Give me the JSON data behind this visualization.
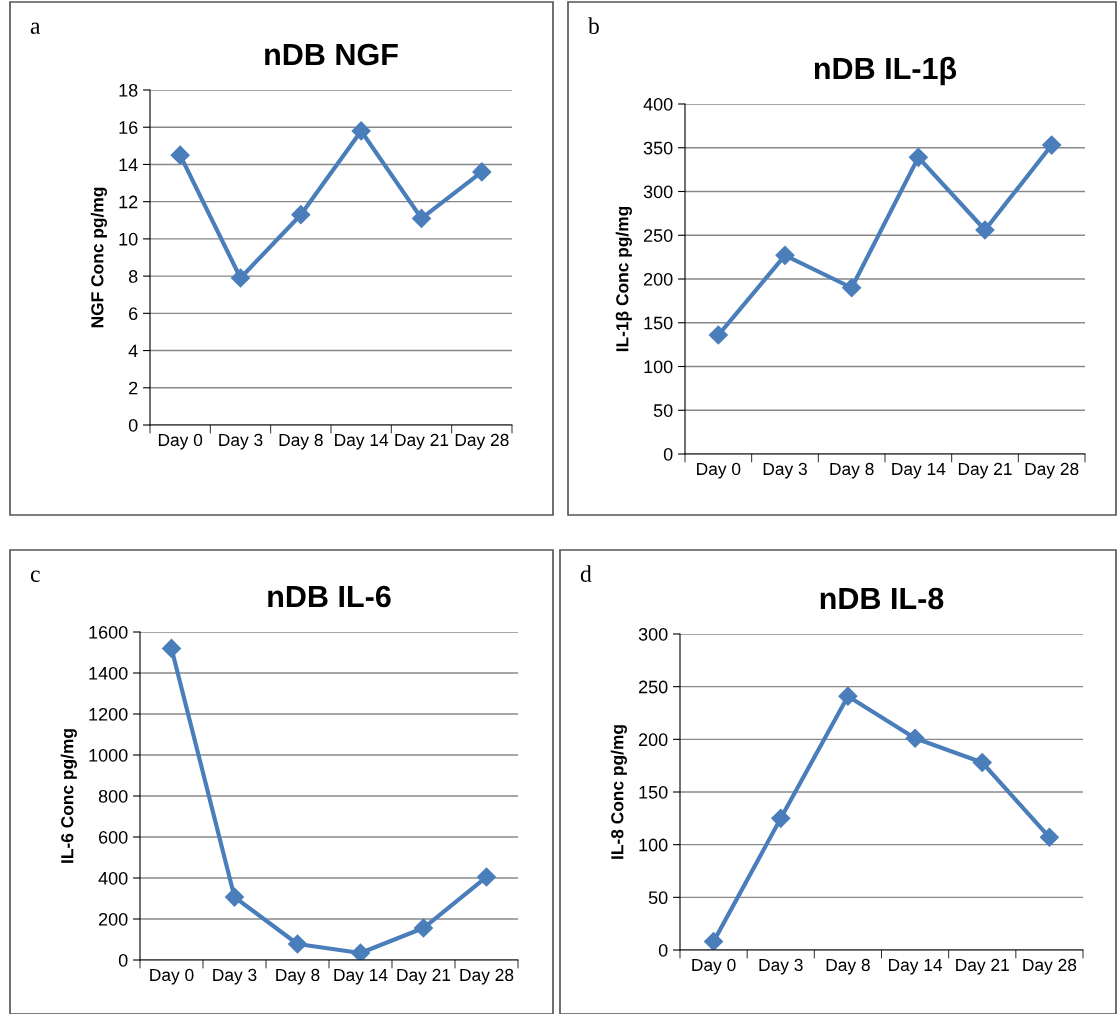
{
  "chart_data": [
    {
      "type": "line",
      "title": "nDB NGF",
      "ylabel": "NGF Conc pg/mg",
      "annotations": [
        "a"
      ],
      "categories": [
        "Day 0",
        "Day 3",
        "Day 8",
        "Day 14",
        "Day 21",
        "Day 28"
      ],
      "series": [
        {
          "color": "#4a7ebb",
          "values": [
            14.5,
            7.9,
            11.3,
            15.8,
            11.1,
            13.6
          ]
        }
      ],
      "ylim": [
        0,
        18
      ],
      "yticks": [
        0,
        2,
        4,
        6,
        8,
        10,
        12,
        14,
        16,
        18
      ],
      "grid": "y",
      "marker": "diamond",
      "line_style": "solid"
    },
    {
      "type": "line",
      "title": "nDB IL-1β",
      "ylabel": "IL-1β Conc pg/mg",
      "annotations": [
        "b"
      ],
      "categories": [
        "Day 0",
        "Day 3",
        "Day 8",
        "Day 14",
        "Day 21",
        "Day 28"
      ],
      "series": [
        {
          "color": "#4a7ebb",
          "values": [
            136,
            227,
            190,
            339,
            256,
            353
          ]
        }
      ],
      "ylim": [
        0,
        400
      ],
      "yticks": [
        0,
        50,
        100,
        150,
        200,
        250,
        300,
        350,
        400
      ],
      "grid": "y",
      "marker": "diamond",
      "line_style": "solid"
    },
    {
      "type": "line",
      "title": "nDB IL-6",
      "ylabel": "IL-6 Conc pg/mg",
      "annotations": [
        "c"
      ],
      "categories": [
        "Day 0",
        "Day 3",
        "Day 8",
        "Day 14",
        "Day 21",
        "Day 28"
      ],
      "series": [
        {
          "color": "#4a7ebb",
          "values": [
            1520,
            307,
            78,
            34,
            156,
            405
          ]
        }
      ],
      "ylim": [
        0,
        1600
      ],
      "yticks": [
        0,
        200,
        400,
        600,
        800,
        1000,
        1200,
        1400,
        1600
      ],
      "grid": "y",
      "marker": "diamond",
      "line_style": "solid"
    },
    {
      "type": "line",
      "title": "nDB IL-8",
      "ylabel": "IL-8 Conc pg/mg",
      "annotations": [
        "d"
      ],
      "categories": [
        "Day 0",
        "Day 3",
        "Day 8",
        "Day 14",
        "Day 21",
        "Day 28"
      ],
      "series": [
        {
          "color": "#4a7ebb",
          "values": [
            8,
            125,
            241,
            201,
            178,
            107
          ]
        }
      ],
      "ylim": [
        0,
        300
      ],
      "yticks": [
        0,
        50,
        100,
        150,
        200,
        250,
        300
      ],
      "grid": "y",
      "marker": "diamond",
      "line_style": "solid"
    }
  ]
}
